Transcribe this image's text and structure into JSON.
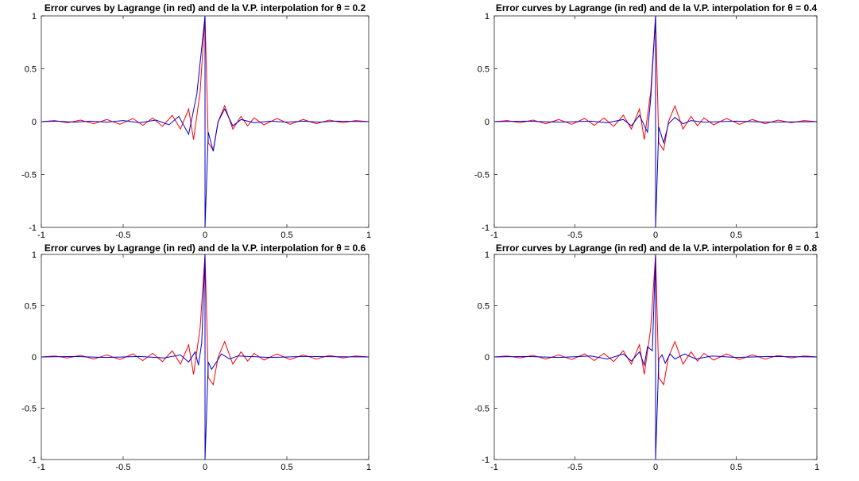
{
  "chart_data": [
    {
      "type": "line",
      "title": "Error curves by Lagrange (in red) and de la V.P. interpolation for θ = 0.2",
      "theta": 0.2,
      "xlim": [
        -1,
        1
      ],
      "ylim": [
        -1,
        1
      ],
      "xticks": [
        "-1",
        "-0.5",
        "0",
        "0.5",
        "1"
      ],
      "yticks": [
        "1",
        "0.5",
        "0",
        "-0.5",
        "-1"
      ],
      "series": [
        {
          "color": "#ff0000",
          "points": [
            [
              -1,
              0
            ],
            [
              -0.92,
              0.01
            ],
            [
              -0.84,
              -0.01
            ],
            [
              -0.76,
              0.015
            ],
            [
              -0.68,
              -0.02
            ],
            [
              -0.6,
              0.02
            ],
            [
              -0.52,
              -0.025
            ],
            [
              -0.44,
              0.03
            ],
            [
              -0.38,
              -0.035
            ],
            [
              -0.32,
              0.035
            ],
            [
              -0.26,
              -0.045
            ],
            [
              -0.2,
              0.06
            ],
            [
              -0.15,
              -0.07
            ],
            [
              -0.1,
              0.12
            ],
            [
              -0.07,
              -0.17
            ],
            [
              -0.03,
              0.28
            ],
            [
              0,
              1
            ],
            [
              0.02,
              -0.2
            ],
            [
              0.05,
              -0.27
            ],
            [
              0.08,
              0.0
            ],
            [
              0.12,
              0.15
            ],
            [
              0.17,
              -0.07
            ],
            [
              0.22,
              0.05
            ],
            [
              0.26,
              -0.04
            ],
            [
              0.3,
              0.035
            ],
            [
              0.36,
              -0.03
            ],
            [
              0.44,
              0.03
            ],
            [
              0.52,
              -0.025
            ],
            [
              0.6,
              0.02
            ],
            [
              0.68,
              -0.02
            ],
            [
              0.76,
              0.015
            ],
            [
              0.84,
              -0.01
            ],
            [
              0.92,
              0.01
            ],
            [
              1,
              0
            ]
          ]
        },
        {
          "color": "#0000cc",
          "points": [
            [
              -1,
              0
            ],
            [
              -0.9,
              0.005
            ],
            [
              -0.8,
              -0.005
            ],
            [
              -0.7,
              0.005
            ],
            [
              -0.6,
              -0.005
            ],
            [
              -0.5,
              0.01
            ],
            [
              -0.4,
              -0.01
            ],
            [
              -0.3,
              0.015
            ],
            [
              -0.22,
              -0.03
            ],
            [
              -0.16,
              0.05
            ],
            [
              -0.1,
              -0.12
            ],
            [
              -0.05,
              0.26
            ],
            [
              0,
              1
            ],
            [
              0.0001,
              -1
            ],
            [
              0.02,
              -0.1
            ],
            [
              0.05,
              -0.28
            ],
            [
              0.08,
              0.0
            ],
            [
              0.12,
              0.12
            ],
            [
              0.17,
              -0.04
            ],
            [
              0.22,
              0.02
            ],
            [
              0.3,
              -0.01
            ],
            [
              0.4,
              0.005
            ],
            [
              0.5,
              -0.005
            ],
            [
              0.6,
              0.005
            ],
            [
              0.7,
              -0.005
            ],
            [
              0.8,
              0.005
            ],
            [
              1,
              0
            ]
          ]
        }
      ]
    },
    {
      "type": "line",
      "title": "Error curves by Lagrange (in red) and de la V.P. interpolation for θ = 0.4",
      "theta": 0.4,
      "xlim": [
        -1,
        1
      ],
      "ylim": [
        -1,
        1
      ],
      "xticks": [
        "-1",
        "-0.5",
        "0",
        "0.5",
        "1"
      ],
      "yticks": [
        "1",
        "0.5",
        "0",
        "-0.5",
        "-1"
      ],
      "series": [
        {
          "color": "#ff0000",
          "points": [
            [
              -1,
              0
            ],
            [
              -0.92,
              0.01
            ],
            [
              -0.84,
              -0.01
            ],
            [
              -0.76,
              0.015
            ],
            [
              -0.68,
              -0.02
            ],
            [
              -0.6,
              0.02
            ],
            [
              -0.52,
              -0.025
            ],
            [
              -0.44,
              0.03
            ],
            [
              -0.38,
              -0.035
            ],
            [
              -0.32,
              0.035
            ],
            [
              -0.26,
              -0.045
            ],
            [
              -0.2,
              0.06
            ],
            [
              -0.15,
              -0.07
            ],
            [
              -0.1,
              0.12
            ],
            [
              -0.07,
              -0.17
            ],
            [
              -0.03,
              0.28
            ],
            [
              0,
              1
            ],
            [
              0.02,
              -0.2
            ],
            [
              0.05,
              -0.27
            ],
            [
              0.08,
              0.0
            ],
            [
              0.12,
              0.15
            ],
            [
              0.17,
              -0.07
            ],
            [
              0.22,
              0.05
            ],
            [
              0.26,
              -0.04
            ],
            [
              0.3,
              0.035
            ],
            [
              0.36,
              -0.03
            ],
            [
              0.44,
              0.03
            ],
            [
              0.52,
              -0.025
            ],
            [
              0.6,
              0.02
            ],
            [
              0.68,
              -0.02
            ],
            [
              0.76,
              0.015
            ],
            [
              0.84,
              -0.01
            ],
            [
              0.92,
              0.01
            ],
            [
              1,
              0
            ]
          ]
        },
        {
          "color": "#0000cc",
          "points": [
            [
              -1,
              0
            ],
            [
              -0.8,
              0.005
            ],
            [
              -0.6,
              -0.005
            ],
            [
              -0.4,
              0.005
            ],
            [
              -0.3,
              -0.01
            ],
            [
              -0.2,
              0.02
            ],
            [
              -0.15,
              -0.04
            ],
            [
              -0.1,
              0.06
            ],
            [
              -0.05,
              -0.1
            ],
            [
              -0.03,
              0.22
            ],
            [
              0,
              1
            ],
            [
              0.0001,
              -1
            ],
            [
              0.02,
              -0.05
            ],
            [
              0.05,
              -0.2
            ],
            [
              0.08,
              -0.02
            ],
            [
              0.12,
              0.04
            ],
            [
              0.17,
              -0.02
            ],
            [
              0.22,
              0.01
            ],
            [
              0.3,
              -0.005
            ],
            [
              0.5,
              0.005
            ],
            [
              0.7,
              -0.005
            ],
            [
              1,
              0
            ]
          ]
        }
      ]
    },
    {
      "type": "line",
      "title": "Error curves by Lagrange (in red) and de la V.P. interpolation for θ = 0.6",
      "theta": 0.6,
      "xlim": [
        -1,
        1
      ],
      "ylim": [
        -1,
        1
      ],
      "xticks": [
        "-1",
        "-0.5",
        "0",
        "0.5",
        "1"
      ],
      "yticks": [
        "1",
        "0.5",
        "0",
        "-0.5",
        "-1"
      ],
      "series": [
        {
          "color": "#ff0000",
          "points": [
            [
              -1,
              0
            ],
            [
              -0.92,
              0.01
            ],
            [
              -0.84,
              -0.01
            ],
            [
              -0.76,
              0.015
            ],
            [
              -0.68,
              -0.02
            ],
            [
              -0.6,
              0.02
            ],
            [
              -0.52,
              -0.025
            ],
            [
              -0.44,
              0.03
            ],
            [
              -0.38,
              -0.035
            ],
            [
              -0.32,
              0.035
            ],
            [
              -0.26,
              -0.045
            ],
            [
              -0.2,
              0.06
            ],
            [
              -0.15,
              -0.07
            ],
            [
              -0.1,
              0.12
            ],
            [
              -0.07,
              -0.17
            ],
            [
              -0.03,
              0.28
            ],
            [
              0,
              1
            ],
            [
              0.02,
              -0.2
            ],
            [
              0.05,
              -0.27
            ],
            [
              0.08,
              0.0
            ],
            [
              0.12,
              0.15
            ],
            [
              0.17,
              -0.07
            ],
            [
              0.22,
              0.05
            ],
            [
              0.26,
              -0.04
            ],
            [
              0.3,
              0.035
            ],
            [
              0.36,
              -0.03
            ],
            [
              0.44,
              0.03
            ],
            [
              0.52,
              -0.025
            ],
            [
              0.6,
              0.02
            ],
            [
              0.68,
              -0.02
            ],
            [
              0.76,
              0.015
            ],
            [
              0.84,
              -0.01
            ],
            [
              0.92,
              0.01
            ],
            [
              1,
              0
            ]
          ]
        },
        {
          "color": "#0000cc",
          "points": [
            [
              -1,
              0
            ],
            [
              -0.8,
              0.005
            ],
            [
              -0.6,
              -0.005
            ],
            [
              -0.4,
              0.005
            ],
            [
              -0.25,
              -0.01
            ],
            [
              -0.15,
              0.02
            ],
            [
              -0.1,
              -0.05
            ],
            [
              -0.06,
              0.05
            ],
            [
              -0.04,
              -0.08
            ],
            [
              -0.02,
              0.14
            ],
            [
              0,
              1
            ],
            [
              0.0001,
              -1
            ],
            [
              0.02,
              -0.05
            ],
            [
              0.04,
              -0.12
            ],
            [
              0.07,
              -0.05
            ],
            [
              0.1,
              0.03
            ],
            [
              0.15,
              -0.02
            ],
            [
              0.2,
              0.01
            ],
            [
              0.4,
              -0.005
            ],
            [
              0.6,
              0.005
            ],
            [
              1,
              0
            ]
          ]
        }
      ]
    },
    {
      "type": "line",
      "title": "Error curves by Lagrange (in red) and de la V.P. interpolation for θ = 0.8",
      "theta": 0.8,
      "xlim": [
        -1,
        1
      ],
      "ylim": [
        -1,
        1
      ],
      "xticks": [
        "-1",
        "-0.5",
        "0",
        "0.5",
        "1"
      ],
      "yticks": [
        "1",
        "0.5",
        "0",
        "-0.5",
        "-1"
      ],
      "series": [
        {
          "color": "#ff0000",
          "points": [
            [
              -1,
              0
            ],
            [
              -0.92,
              0.01
            ],
            [
              -0.84,
              -0.01
            ],
            [
              -0.76,
              0.015
            ],
            [
              -0.68,
              -0.02
            ],
            [
              -0.6,
              0.02
            ],
            [
              -0.52,
              -0.025
            ],
            [
              -0.44,
              0.03
            ],
            [
              -0.38,
              -0.035
            ],
            [
              -0.32,
              0.035
            ],
            [
              -0.26,
              -0.045
            ],
            [
              -0.2,
              0.06
            ],
            [
              -0.15,
              -0.07
            ],
            [
              -0.1,
              0.12
            ],
            [
              -0.07,
              -0.17
            ],
            [
              -0.03,
              0.28
            ],
            [
              0,
              1
            ],
            [
              0.02,
              -0.2
            ],
            [
              0.05,
              -0.27
            ],
            [
              0.08,
              0.0
            ],
            [
              0.12,
              0.15
            ],
            [
              0.17,
              -0.07
            ],
            [
              0.22,
              0.05
            ],
            [
              0.26,
              -0.04
            ],
            [
              0.3,
              0.035
            ],
            [
              0.36,
              -0.03
            ],
            [
              0.44,
              0.03
            ],
            [
              0.52,
              -0.025
            ],
            [
              0.6,
              0.02
            ],
            [
              0.68,
              -0.02
            ],
            [
              0.76,
              0.015
            ],
            [
              0.84,
              -0.01
            ],
            [
              0.92,
              0.01
            ],
            [
              1,
              0
            ]
          ]
        },
        {
          "color": "#0000cc",
          "points": [
            [
              -1,
              0
            ],
            [
              -0.8,
              0.005
            ],
            [
              -0.6,
              -0.005
            ],
            [
              -0.4,
              0.01
            ],
            [
              -0.3,
              -0.02
            ],
            [
              -0.2,
              0.03
            ],
            [
              -0.15,
              -0.04
            ],
            [
              -0.1,
              0.05
            ],
            [
              -0.07,
              -0.08
            ],
            [
              -0.05,
              0.1
            ],
            [
              -0.02,
              0.06
            ],
            [
              0,
              1
            ],
            [
              0.0001,
              -1
            ],
            [
              0.02,
              -0.02
            ],
            [
              0.04,
              0.02
            ],
            [
              0.06,
              -0.06
            ],
            [
              0.09,
              0.03
            ],
            [
              0.12,
              -0.02
            ],
            [
              0.18,
              0.03
            ],
            [
              0.25,
              -0.02
            ],
            [
              0.35,
              0.01
            ],
            [
              0.5,
              -0.005
            ],
            [
              0.7,
              0.005
            ],
            [
              1,
              0
            ]
          ]
        }
      ]
    }
  ]
}
